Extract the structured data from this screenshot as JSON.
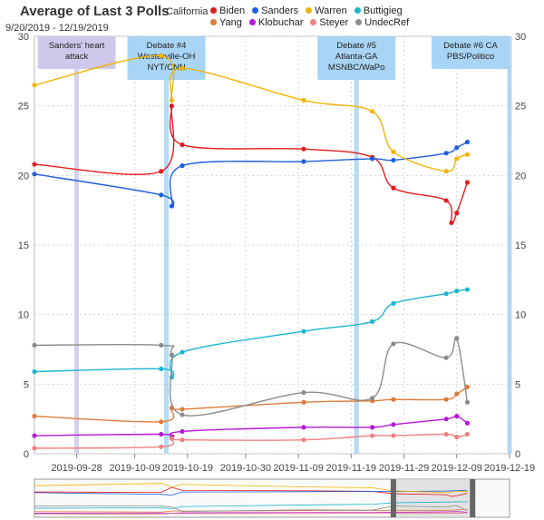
{
  "chart_data": {
    "type": "line",
    "title": "Average of Last 3 Polls",
    "subtitle": "9/20/2019 - 12/19/2019",
    "state": "California",
    "ylim": [
      0,
      30
    ],
    "yticks": [
      0,
      5,
      10,
      15,
      20,
      25,
      30
    ],
    "xlim": [
      "2019-09-20",
      "2019-12-19"
    ],
    "xticks": [
      "2019-09-28",
      "2019-10-09",
      "2019-10-19",
      "2019-10-30",
      "2019-11-09",
      "2019-11-19",
      "2019-11-29",
      "2019-12-09",
      "2019-12-19"
    ],
    "grid": true,
    "legend_position": "top",
    "events": [
      {
        "date": "2019-09-28",
        "label": "Sanders' heart attack",
        "color": "#cfc8ea"
      },
      {
        "date": "2019-10-15",
        "label": "Debate #4 Westerville-OH NYT/CNN",
        "color": "#a8d4f5"
      },
      {
        "date": "2019-11-20",
        "label": "Debate #5 Atlanta-GA MSNBC/WaPo",
        "color": "#a8d4f5"
      },
      {
        "date": "2019-12-19",
        "label": "Debate #6 CA PBS/Politico",
        "color": "#a8d4f5"
      }
    ],
    "series": [
      {
        "name": "Biden",
        "color": "#e41a1c",
        "points": [
          [
            "2019-09-20",
            20.8
          ],
          [
            "2019-10-14",
            20.3
          ],
          [
            "2019-10-16",
            25.0
          ],
          [
            "2019-10-18",
            22.2
          ],
          [
            "2019-11-10",
            21.9
          ],
          [
            "2019-11-23",
            21.3
          ],
          [
            "2019-11-27",
            19.1
          ],
          [
            "2019-12-07",
            18.2
          ],
          [
            "2019-12-08",
            16.6
          ],
          [
            "2019-12-09",
            17.3
          ],
          [
            "2019-12-11",
            19.5
          ]
        ]
      },
      {
        "name": "Sanders",
        "color": "#1f5ee0",
        "points": [
          [
            "2019-09-20",
            20.1
          ],
          [
            "2019-10-14",
            18.6
          ],
          [
            "2019-10-16",
            17.8
          ],
          [
            "2019-10-18",
            20.7
          ],
          [
            "2019-11-10",
            21.0
          ],
          [
            "2019-11-23",
            21.2
          ],
          [
            "2019-11-27",
            21.1
          ],
          [
            "2019-12-07",
            21.6
          ],
          [
            "2019-12-09",
            22.0
          ],
          [
            "2019-12-11",
            22.4
          ]
        ]
      },
      {
        "name": "Warren",
        "color": "#f0b400",
        "points": [
          [
            "2019-09-20",
            26.5
          ],
          [
            "2019-10-14",
            28.6
          ],
          [
            "2019-10-16",
            25.4
          ],
          [
            "2019-10-18",
            27.7
          ],
          [
            "2019-11-10",
            25.4
          ],
          [
            "2019-11-23",
            24.6
          ],
          [
            "2019-11-27",
            21.7
          ],
          [
            "2019-12-07",
            20.3
          ],
          [
            "2019-12-09",
            21.2
          ],
          [
            "2019-12-11",
            21.5
          ]
        ]
      },
      {
        "name": "Buttigieg",
        "color": "#1ab6d0",
        "points": [
          [
            "2019-09-20",
            5.9
          ],
          [
            "2019-10-14",
            6.1
          ],
          [
            "2019-10-16",
            5.5
          ],
          [
            "2019-10-18",
            7.3
          ],
          [
            "2019-11-10",
            8.8
          ],
          [
            "2019-11-23",
            9.5
          ],
          [
            "2019-11-27",
            10.8
          ],
          [
            "2019-12-07",
            11.5
          ],
          [
            "2019-12-09",
            11.7
          ],
          [
            "2019-12-11",
            11.8
          ]
        ]
      },
      {
        "name": "Yang",
        "color": "#e07b3a",
        "points": [
          [
            "2019-09-20",
            2.7
          ],
          [
            "2019-10-14",
            2.3
          ],
          [
            "2019-10-16",
            3.3
          ],
          [
            "2019-10-18",
            3.2
          ],
          [
            "2019-11-10",
            3.7
          ],
          [
            "2019-11-23",
            3.8
          ],
          [
            "2019-11-27",
            3.9
          ],
          [
            "2019-12-07",
            3.9
          ],
          [
            "2019-12-09",
            4.3
          ],
          [
            "2019-12-11",
            4.8
          ]
        ]
      },
      {
        "name": "Klobuchar",
        "color": "#b517d6",
        "points": [
          [
            "2019-09-20",
            1.3
          ],
          [
            "2019-10-14",
            1.4
          ],
          [
            "2019-10-16",
            1.2
          ],
          [
            "2019-10-18",
            1.6
          ],
          [
            "2019-11-10",
            1.9
          ],
          [
            "2019-11-23",
            1.9
          ],
          [
            "2019-11-27",
            2.1
          ],
          [
            "2019-12-07",
            2.5
          ],
          [
            "2019-12-09",
            2.7
          ],
          [
            "2019-12-11",
            2.2
          ]
        ]
      },
      {
        "name": "Steyer",
        "color": "#f08080",
        "points": [
          [
            "2019-09-20",
            0.4
          ],
          [
            "2019-10-14",
            0.5
          ],
          [
            "2019-10-16",
            1.1
          ],
          [
            "2019-10-18",
            1.0
          ],
          [
            "2019-11-10",
            1.0
          ],
          [
            "2019-11-23",
            1.3
          ],
          [
            "2019-11-27",
            1.3
          ],
          [
            "2019-12-07",
            1.4
          ],
          [
            "2019-12-09",
            1.2
          ],
          [
            "2019-12-11",
            1.4
          ]
        ]
      },
      {
        "name": "UndecRef",
        "color": "#8c8c8c",
        "points": [
          [
            "2019-09-20",
            7.8
          ],
          [
            "2019-10-14",
            7.8
          ],
          [
            "2019-10-16",
            7.1
          ],
          [
            "2019-10-18",
            2.8
          ],
          [
            "2019-11-10",
            4.4
          ],
          [
            "2019-11-23",
            4.0
          ],
          [
            "2019-11-27",
            7.9
          ],
          [
            "2019-12-07",
            6.9
          ],
          [
            "2019-12-09",
            8.3
          ],
          [
            "2019-12-11",
            3.7
          ]
        ]
      }
    ]
  }
}
